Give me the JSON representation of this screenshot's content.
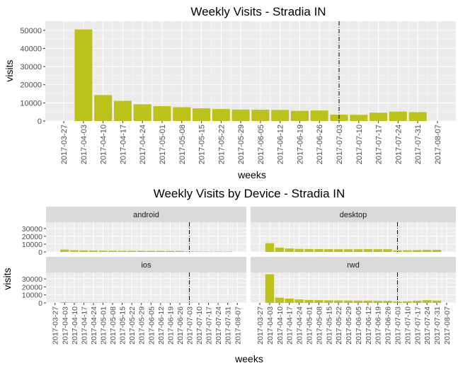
{
  "colors": {
    "bar": "#BDC21A",
    "panel_bg": "#EBEBEB",
    "grid_major": "#FFFFFF",
    "strip_bg": "#D9D9D9",
    "text": "#000000",
    "tick_text": "#4D4D4D"
  },
  "week_labels": [
    "2017-03-27",
    "2017-04-03",
    "2017-04-10",
    "2017-04-17",
    "2017-04-24",
    "2017-05-01",
    "2017-05-08",
    "2017-05-15",
    "2017-05-22",
    "2017-05-29",
    "2017-06-05",
    "2017-06-12",
    "2017-06-19",
    "2017-06-26",
    "2017-07-03",
    "2017-07-10",
    "2017-07-17",
    "2017-07-24",
    "2017-07-31",
    "2017-08-07"
  ],
  "chart_data": [
    {
      "type": "bar",
      "title": "Weekly Visits - Stradia IN",
      "xlabel": "weeks",
      "ylabel": "visits",
      "ylim": [
        0,
        55000
      ],
      "yticks": [
        0,
        10000,
        20000,
        30000,
        40000,
        50000
      ],
      "ytick_labels": [
        "0",
        "10000",
        "20000",
        "30000",
        "40000",
        "50000"
      ],
      "vline": "2017-07-03",
      "categories": [
        "2017-04-03",
        "2017-04-10",
        "2017-04-17",
        "2017-04-24",
        "2017-05-01",
        "2017-05-08",
        "2017-05-15",
        "2017-05-22",
        "2017-05-29",
        "2017-06-05",
        "2017-06-12",
        "2017-06-19",
        "2017-06-26",
        "2017-07-03",
        "2017-07-10",
        "2017-07-17",
        "2017-07-24",
        "2017-07-31"
      ],
      "values": [
        50500,
        14300,
        11100,
        9200,
        8200,
        7600,
        7000,
        6600,
        6300,
        6200,
        6100,
        5600,
        5800,
        3500,
        3400,
        4600,
        5200,
        4900
      ],
      "grid": true
    },
    {
      "type": "bar",
      "title": "Weekly Visits by Device - Stradia IN",
      "xlabel": "weeks",
      "ylabel": "visits",
      "ylim": [
        0,
        38000
      ],
      "yticks": [
        0,
        10000,
        20000,
        30000
      ],
      "ytick_labels": [
        "0",
        "10000",
        "20000",
        "30000"
      ],
      "vline": "2017-07-03",
      "categories": [
        "2017-04-03",
        "2017-04-10",
        "2017-04-17",
        "2017-04-24",
        "2017-05-01",
        "2017-05-08",
        "2017-05-15",
        "2017-05-22",
        "2017-05-29",
        "2017-06-05",
        "2017-06-12",
        "2017-06-19",
        "2017-06-26",
        "2017-07-03",
        "2017-07-10",
        "2017-07-17",
        "2017-07-24",
        "2017-07-31"
      ],
      "grid": true,
      "series": [
        {
          "name": "android",
          "values": [
            3000,
            2100,
            1900,
            1700,
            1600,
            1500,
            1400,
            1400,
            1300,
            1300,
            1300,
            1200,
            1200,
            600,
            400,
            400,
            400,
            400
          ]
        },
        {
          "name": "desktop",
          "values": [
            11200,
            5400,
            4400,
            3900,
            3700,
            3600,
            3500,
            3400,
            3400,
            3500,
            3600,
            3500,
            3500,
            1900,
            2100,
            2300,
            2600,
            2700
          ]
        },
        {
          "name": "ios",
          "values": [
            700,
            500,
            400,
            400,
            400,
            300,
            300,
            300,
            300,
            300,
            300,
            300,
            300,
            300,
            200,
            300,
            300,
            300
          ]
        },
        {
          "name": "rwd",
          "values": [
            35800,
            6500,
            5300,
            4400,
            3700,
            3400,
            3200,
            3000,
            2900,
            2800,
            2800,
            2600,
            2600,
            1600,
            1900,
            2700,
            3400,
            2900
          ]
        }
      ]
    }
  ]
}
